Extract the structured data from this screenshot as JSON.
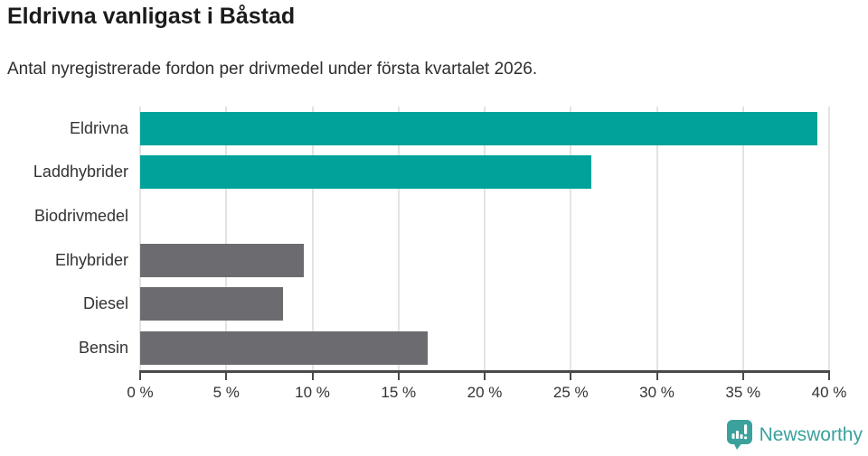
{
  "header": {
    "title": "Eldrivna vanligast i Båstad",
    "subtitle": "Antal nyregistrerade fordon per drivmedel under första kvartalet 2026."
  },
  "chart_data": {
    "type": "bar",
    "orientation": "horizontal",
    "title": "Eldrivna vanligast i Båstad",
    "subtitle": "Antal nyregistrerade fordon per drivmedel under första kvartalet 2026.",
    "categories": [
      "Eldrivna",
      "Laddhybrider",
      "Biodrivmedel",
      "Elhybrider",
      "Diesel",
      "Bensin"
    ],
    "values": [
      39.3,
      26.2,
      0,
      9.5,
      8.3,
      16.7
    ],
    "unit": "%",
    "xlim": [
      0,
      40
    ],
    "x_ticks": [
      "0 %",
      "5 %",
      "10 %",
      "15 %",
      "20 %",
      "25 %",
      "30 %",
      "35 %",
      "40 %"
    ],
    "grid": true,
    "legend": false,
    "bar_colors": [
      "#00a29a",
      "#00a29a",
      "#00a29a",
      "#6b6b70",
      "#6b6b70",
      "#6b6b70"
    ],
    "highlight_color": "#00a29a",
    "default_color": "#6b6b70",
    "gridline_color": "#e3e3e3",
    "axis_color": "#4a4a4a",
    "label_color": "#333333"
  },
  "footer": {
    "brand": "Newsworthy",
    "brand_color": "#3aa19c",
    "logo_icon": "newsworthy-bar-chart-speech-bubble"
  }
}
